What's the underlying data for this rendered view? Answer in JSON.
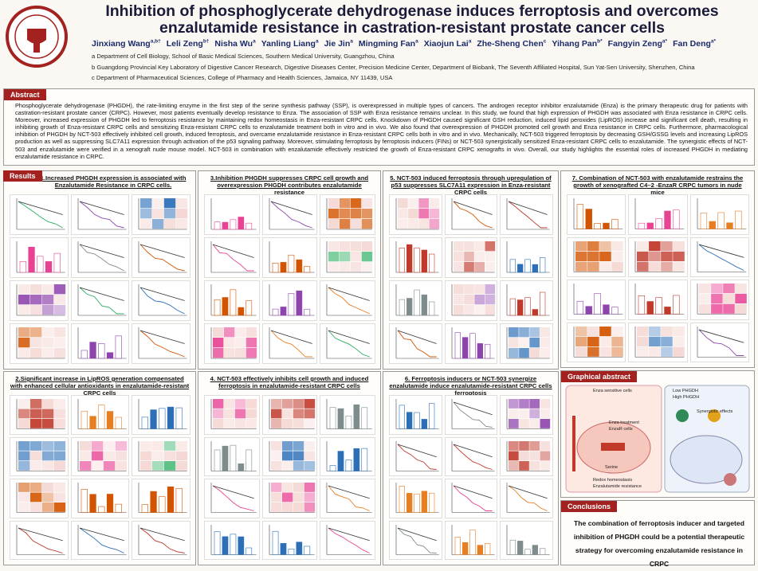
{
  "header": {
    "title": "Inhibition of phosphoglycerate dehydrogenase induces ferroptosis and overcomes enzalutamide resistance in castration-resistant prostate  cancer cells",
    "authors": [
      {
        "name": "Jinxiang Wang",
        "sup": "a,b†"
      },
      {
        "name": "Leli Zeng",
        "sup": "b†"
      },
      {
        "name": "Nisha Wu",
        "sup": "a"
      },
      {
        "name": "Yanling Liang",
        "sup": "a"
      },
      {
        "name": "Jie Jin",
        "sup": "a"
      },
      {
        "name": "Mingming Fan",
        "sup": "a"
      },
      {
        "name": "Xiaojun Lai",
        "sup": "a"
      },
      {
        "name": "Zhe-Sheng Chen",
        "sup": "c"
      },
      {
        "name": "Yihang Pan",
        "sup": "b*"
      },
      {
        "name": "Fangyin Zeng",
        "sup": "a*"
      },
      {
        "name": "Fan Deng",
        "sup": "a*"
      }
    ],
    "affiliations": [
      "a Department of Cell Biology, School of Basic Medical Sciences, Southern Medical University, Guangzhou, China",
      "b Guangdong Provincial Key Laboratory of Digestive Cancer Research, Digestive Diseases Center, Precision Medicine Center, Department of Biobank, The Seventh Affiliated Hospital, Sun Yat-Sen University, Shenzhen, China",
      "c Department of Pharmaceutical Sciences, College of Pharmacy and Health Sciences, Jamaica, NY 11439, USA"
    ]
  },
  "abstract": {
    "heading": "Abstract",
    "text": "Phosphoglycerate dehydrogenase (PHGDH), the rate-limiting enzyme in the first step of the serine synthesis pathway (SSP), is overexpressed in multiple types of cancers. The androgen receptor inhibitor enzalutamide (Enza) is the primary therapeutic drug for patients with castration-resistant prostate cancer (CRPC). However, most patients eventually develop resistance to Enza. The association of SSP with Enza resistance remains unclear. In this study, we found that high expression of PHGDH was associated with Enza resistance in CRPC cells. Moreover, increased expression of PHGDH led to ferroptosis resistance by maintaining redox homeostasis in Enza-resistant CRPC cells. Knockdown of PHGDH caused significant GSH reduction, induced lipid peroxides (LipROS) increase and significant cell death, resulting in inhibiting growth of Enza-resistant CRPC cells and sensitizing Enza-resistant CRPC cells to enzalutamide treatment both in vitro and in vivo. We also found that overexpression of PHGDH promoted cell growth and Enza resistance in CRPC cells. Furthermore, pharmacological inhibition of PHGDH by NCT-503 effectively inhibited cell growth, induced ferroptosis, and overcame enzalutamide resistance in Enza-resistant CRPC cells both in vitro and in vivo. Mechanically, NCT-503 triggered ferroptosis by decreasing GSH/GSSG levels and increasing LipROS production as well as suppressing SLC7A11 expression through activation of the p53 signaling pathway. Moreover, stimulating ferroptosis by ferroptosis inducers (FINs) or NCT-503 synergistically sensitized Enza-resistant CRPC cells to enzalutamide. The synergistic effects of NCT-503 and enzalutamide were verified in a xenograft nude mouse model. NCT-503 in combination with enzalutamide effectively restricted the growth of Enza-resistant CRPC xenografts in vivo. Overall, our study highlights the essential roles of increased PHGDH in mediating enzalutamide resistance in CRPC."
  },
  "results": {
    "heading": "Results",
    "sections": [
      "1.Increased PHGDH expression is associated with Enzalutamide Resistance in CRPC cells.",
      "3.Inhibition PHGDH suppresses CRPC cell growth  and overexpression PHGDH contributes enzalutamide resistance",
      "5. NCT-503 induced ferroptosis through upregulation of p53 suppresses SLC7A11 expression in Enza-resistant CRPC cells",
      "7. Combination of NCT-503 with enzalutamide restrains the growth of xenografted C4–2 -EnzaR CRPC tumors in nude mice",
      "2.Significant increase in LipROS generation compensated with enhanced cellular antioxidants in enzalutamide-resistant CRPC cells",
      "4. NCT-503 effectively inhibits cell growth and induced ferroptosis in enzalutamide-resistant CRPC cells",
      "6. Ferroptosis inducers or NCT-503 synergize enzalutamide induce enzalutamide-resistant CRPC cells ferroptosis"
    ]
  },
  "graphical_abstract": {
    "heading": "Graphical abstract",
    "labels": [
      "Enza sensitive cells",
      "Low PHGDH",
      "High PHGDH",
      "Synergistic effects",
      "Enza treatment",
      "EnzaR cells",
      "Serine",
      "Redox homeostasis",
      "Enzalutamide resistance"
    ]
  },
  "conclusions": {
    "heading": "Conclusions",
    "text": "The combination of ferroptosis inducer and targeted inhibition of PHGDH could be a potential therapeutic strategy for overcoming enzalutamide resistance in CRPC"
  }
}
